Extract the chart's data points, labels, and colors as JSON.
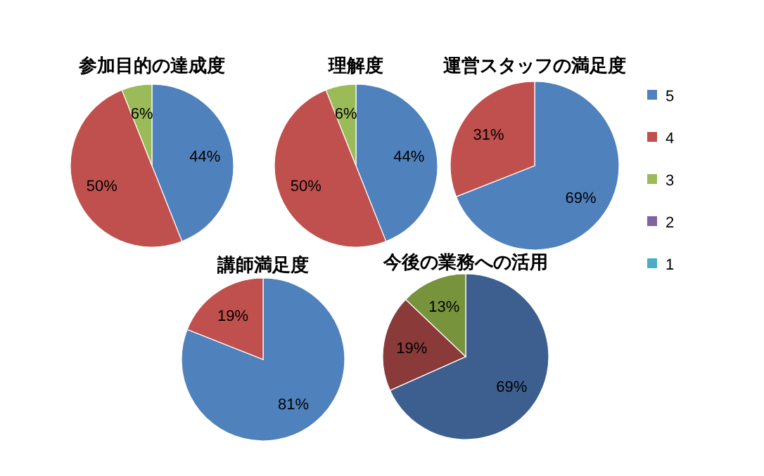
{
  "chart_data": [
    {
      "type": "pie",
      "title": "参加目的の達成度",
      "categories": [
        null,
        null,
        null
      ],
      "values": [
        44,
        50,
        6
      ],
      "colors": [
        "#4f81bd",
        "#c0504d",
        "#9bbb59"
      ],
      "value_labels": [
        "44%",
        "50%",
        "6%"
      ]
    },
    {
      "type": "pie",
      "title": "理解度",
      "categories": [
        null,
        null,
        null
      ],
      "values": [
        44,
        50,
        6
      ],
      "colors": [
        "#4f81bd",
        "#c0504d",
        "#9bbb59"
      ],
      "value_labels": [
        "44%",
        "50%",
        "6%"
      ]
    },
    {
      "type": "pie",
      "title": "運営スタッフの満足度",
      "categories": [
        "5",
        "4",
        "3",
        "2",
        "1"
      ],
      "values": [
        69,
        31,
        0,
        0,
        0
      ],
      "colors": [
        "#4f81bd",
        "#c0504d",
        "#9bbb59",
        "#8064a2",
        "#4bacc6"
      ],
      "value_labels": [
        "69%",
        "31%",
        null,
        null,
        null
      ],
      "legend": "right"
    },
    {
      "type": "pie",
      "title": "講師満足度",
      "categories": [
        null,
        null
      ],
      "values": [
        81,
        19
      ],
      "colors": [
        "#4f81bd",
        "#c0504d"
      ],
      "value_labels": [
        "81%",
        "19%"
      ]
    },
    {
      "type": "pie",
      "title": "今後の業務への活用",
      "categories": [
        null,
        null,
        null
      ],
      "values": [
        69,
        19,
        13
      ],
      "colors": [
        "#3c5f8f",
        "#8b3a3a",
        "#77933c"
      ],
      "value_labels": [
        "69%",
        "19%",
        "13%"
      ]
    }
  ]
}
